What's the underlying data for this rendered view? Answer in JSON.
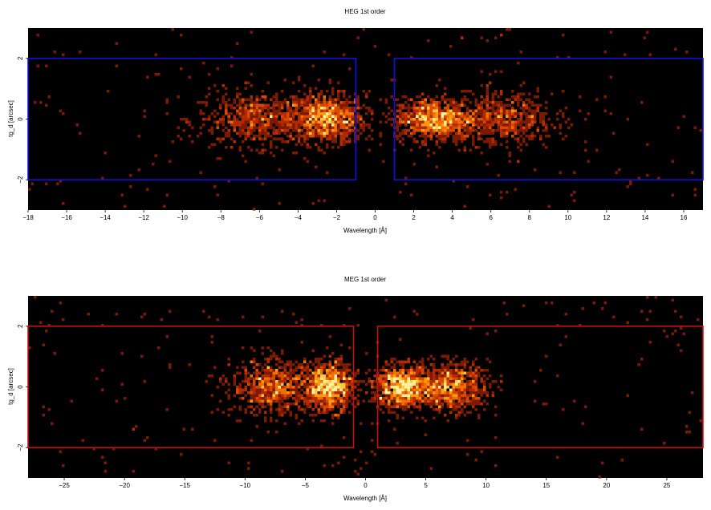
{
  "chart_data": [
    {
      "type": "heatmap",
      "title": "HEG 1st order",
      "xlabel": "Wavelength [Å]",
      "ylabel": "tg_d [arcsec]",
      "xlim": [
        -18,
        17
      ],
      "ylim": [
        -3,
        3
      ],
      "x_ticks": [
        -18,
        -16,
        -14,
        -12,
        -10,
        -8,
        -6,
        -4,
        -2,
        0,
        2,
        4,
        6,
        8,
        10,
        12,
        14,
        16
      ],
      "x_tick_labels": [
        "−18",
        "−16",
        "−14",
        "−12",
        "−10",
        "−8",
        "−6",
        "−4",
        "−2",
        "0",
        "2",
        "4",
        "6",
        "8",
        "10",
        "12",
        "14",
        "16"
      ],
      "y_ticks": [
        -2,
        0,
        2
      ],
      "y_tick_labels": [
        "−2",
        "0",
        "2"
      ],
      "background": "#000000",
      "region_color": "#1010e0",
      "regions": [
        {
          "x": [
            -18,
            -1
          ],
          "y": [
            -2,
            2
          ]
        },
        {
          "x": [
            1,
            17
          ],
          "y": [
            -2,
            2
          ]
        }
      ],
      "clusters": [
        {
          "x_center": -2.5,
          "x_width": 1.0,
          "y_width": 0.4,
          "density": 1.0
        },
        {
          "x_center": -6.0,
          "x_width": 1.6,
          "y_width": 0.45,
          "density": 0.75
        },
        {
          "x_center": 3.0,
          "x_width": 1.0,
          "y_width": 0.35,
          "density": 1.0
        },
        {
          "x_center": 6.5,
          "x_width": 1.4,
          "y_width": 0.45,
          "density": 0.7
        }
      ]
    },
    {
      "type": "heatmap",
      "title": "MEG 1st order",
      "xlabel": "Wavelength [Å]",
      "ylabel": "tg_d [arcsec]",
      "xlim": [
        -28,
        28
      ],
      "ylim": [
        -3,
        3
      ],
      "x_ticks": [
        -25,
        -20,
        -15,
        -10,
        -5,
        0,
        5,
        10,
        15,
        20,
        25
      ],
      "x_tick_labels": [
        "−25",
        "−20",
        "−15",
        "−10",
        "−5",
        "0",
        "5",
        "10",
        "15",
        "20",
        "25"
      ],
      "y_ticks": [
        -2,
        0,
        2
      ],
      "y_tick_labels": [
        "−2",
        "0",
        "2"
      ],
      "background": "#000000",
      "region_color": "#c81010",
      "regions": [
        {
          "x": [
            -28,
            -1
          ],
          "y": [
            -2,
            2
          ]
        },
        {
          "x": [
            1,
            28
          ],
          "y": [
            -2,
            2
          ]
        }
      ],
      "clusters": [
        {
          "x_center": -3.0,
          "x_width": 1.0,
          "y_width": 0.4,
          "density": 1.0
        },
        {
          "x_center": -7.5,
          "x_width": 1.8,
          "y_width": 0.45,
          "density": 0.85
        },
        {
          "x_center": 3.0,
          "x_width": 1.2,
          "y_width": 0.35,
          "density": 1.0
        },
        {
          "x_center": 7.0,
          "x_width": 1.6,
          "y_width": 0.4,
          "density": 0.9
        }
      ]
    }
  ]
}
